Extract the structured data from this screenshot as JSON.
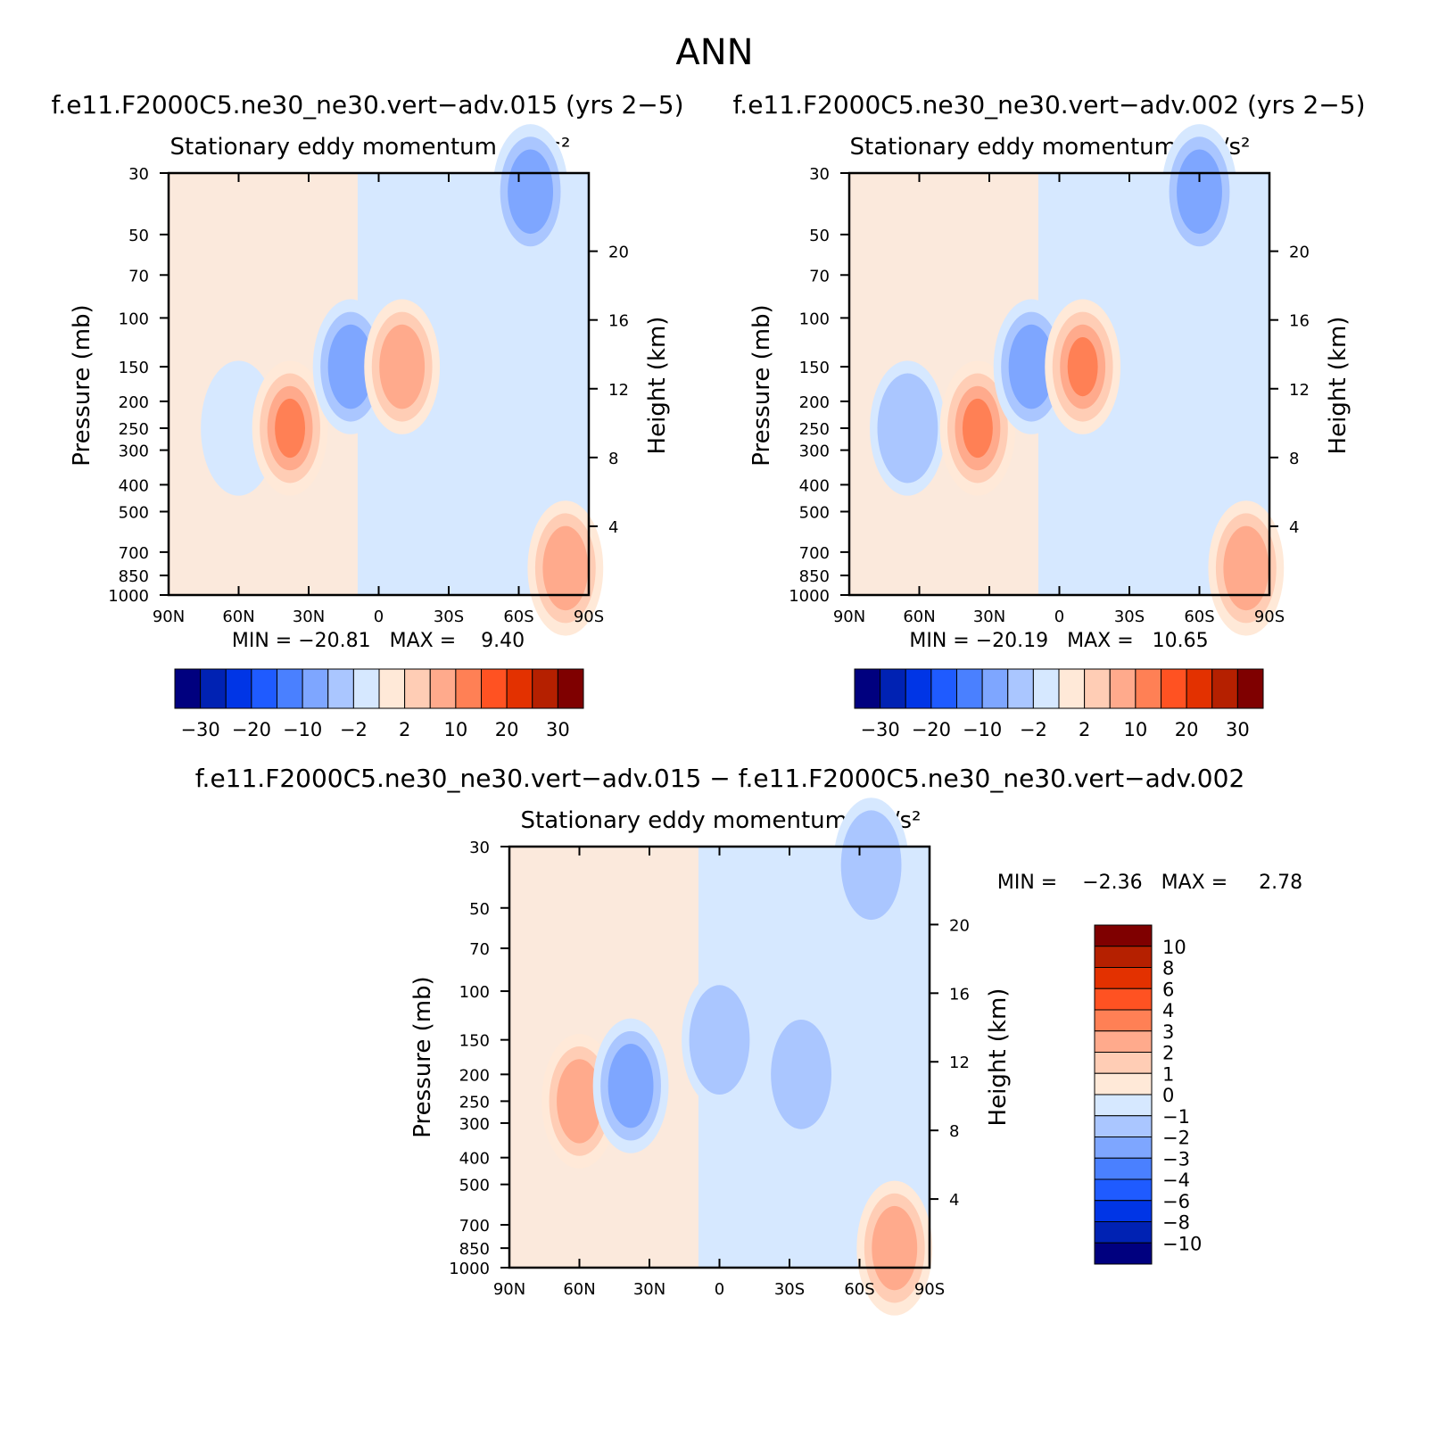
{
  "figure_title": "ANN",
  "colors": {
    "full_palette": [
      "#00007f",
      "#0022b3",
      "#0035e6",
      "#1f5bff",
      "#4a80ff",
      "#7ea6ff",
      "#aac6ff",
      "#d6e8ff",
      "#ffe9d8",
      "#ffcdb5",
      "#ffaa8c",
      "#ff8055",
      "#ff5222",
      "#e33100",
      "#b52000",
      "#7f0000"
    ],
    "diff_palette": [
      "#00007f",
      "#0022b3",
      "#0035e6",
      "#1f5bff",
      "#4a80ff",
      "#7ea6ff",
      "#aac6ff",
      "#d6e8ff",
      "#ffe9d8",
      "#ffcdb5",
      "#ffaa8c",
      "#ff8055",
      "#ff5222",
      "#e33100",
      "#b52000",
      "#7f0000"
    ]
  },
  "chart_data": [
    {
      "id": "p1",
      "type": "heatmap",
      "header": "f.e11.F2000C5.ne30_ne30.vert−adv.015 (yrs 2−5)",
      "title": "Stationary eddy momentum",
      "units": "m²/s²",
      "ylabel": "Pressure (mb)",
      "ylabel_right": "Height (km)",
      "x_ticks": [
        "90N",
        "60N",
        "30N",
        "0",
        "30S",
        "60S",
        "90S"
      ],
      "y_ticks": [
        "30",
        "50",
        "70",
        "100",
        "150",
        "200",
        "250",
        "300",
        "400",
        "500",
        "700",
        "850",
        "1000"
      ],
      "y_ticks_right": [
        "20",
        "16",
        "12",
        "8",
        "4"
      ],
      "stats_text": "MIN = −20.81   MAX =    9.40",
      "min": -20.81,
      "max": 9.4,
      "colorbar_labels": [
        "−30",
        "−20",
        "−10",
        "−2",
        "2",
        "10",
        "20",
        "30"
      ],
      "features": [
        {
          "lat": 60,
          "p": 250,
          "level": 7
        },
        {
          "lat": 38,
          "p": 250,
          "level": 11
        },
        {
          "lat": 12,
          "p": 150,
          "level": 5
        },
        {
          "lat": -10,
          "p": 150,
          "level": 10
        },
        {
          "lat": -65,
          "p": 35,
          "level": 5
        },
        {
          "lat": -80,
          "p": 800,
          "level": 10
        }
      ]
    },
    {
      "id": "p2",
      "type": "heatmap",
      "header": "f.e11.F2000C5.ne30_ne30.vert−adv.002 (yrs 2−5)",
      "title": "Stationary eddy momentum",
      "units": "m²/s²",
      "ylabel": "Pressure (mb)",
      "ylabel_right": "Height (km)",
      "x_ticks": [
        "90N",
        "60N",
        "30N",
        "0",
        "30S",
        "60S",
        "90S"
      ],
      "y_ticks": [
        "30",
        "50",
        "70",
        "100",
        "150",
        "200",
        "250",
        "300",
        "400",
        "500",
        "700",
        "850",
        "1000"
      ],
      "y_ticks_right": [
        "20",
        "16",
        "12",
        "8",
        "4"
      ],
      "stats_text": "MIN = −20.19   MAX =   10.65",
      "min": -20.19,
      "max": 10.65,
      "colorbar_labels": [
        "−30",
        "−20",
        "−10",
        "−2",
        "2",
        "10",
        "20",
        "30"
      ],
      "features": [
        {
          "lat": 65,
          "p": 250,
          "level": 6
        },
        {
          "lat": 35,
          "p": 250,
          "level": 11
        },
        {
          "lat": 12,
          "p": 150,
          "level": 5
        },
        {
          "lat": -10,
          "p": 150,
          "level": 11
        },
        {
          "lat": -60,
          "p": 35,
          "level": 5
        },
        {
          "lat": -80,
          "p": 800,
          "level": 10
        }
      ]
    },
    {
      "id": "p3",
      "type": "heatmap",
      "header": "f.e11.F2000C5.ne30_ne30.vert−adv.015 − f.e11.F2000C5.ne30_ne30.vert−adv.002",
      "title": "Stationary eddy momentum",
      "units": "m²/s²",
      "ylabel": "Pressure (mb)",
      "ylabel_right": "Height (km)",
      "x_ticks": [
        "90N",
        "60N",
        "30N",
        "0",
        "30S",
        "60S",
        "90S"
      ],
      "y_ticks": [
        "30",
        "50",
        "70",
        "100",
        "150",
        "200",
        "250",
        "300",
        "400",
        "500",
        "700",
        "850",
        "1000"
      ],
      "y_ticks_right": [
        "20",
        "16",
        "12",
        "8",
        "4"
      ],
      "stats_text": "MIN =    −2.36   MAX =     2.78",
      "min": -2.36,
      "max": 2.78,
      "colorbar_labels": [
        "10",
        "8",
        "6",
        "4",
        "3",
        "2",
        "1",
        "0",
        "−1",
        "−2",
        "−3",
        "−4",
        "−6",
        "−8",
        "−10"
      ],
      "features": [
        {
          "lat": 60,
          "p": 250,
          "level": 10
        },
        {
          "lat": 38,
          "p": 220,
          "level": 5
        },
        {
          "lat": -35,
          "p": 200,
          "level": 6
        },
        {
          "lat": 0,
          "p": 150,
          "level": 6
        },
        {
          "lat": -65,
          "p": 35,
          "level": 6
        },
        {
          "lat": -75,
          "p": 850,
          "level": 10
        }
      ]
    }
  ]
}
